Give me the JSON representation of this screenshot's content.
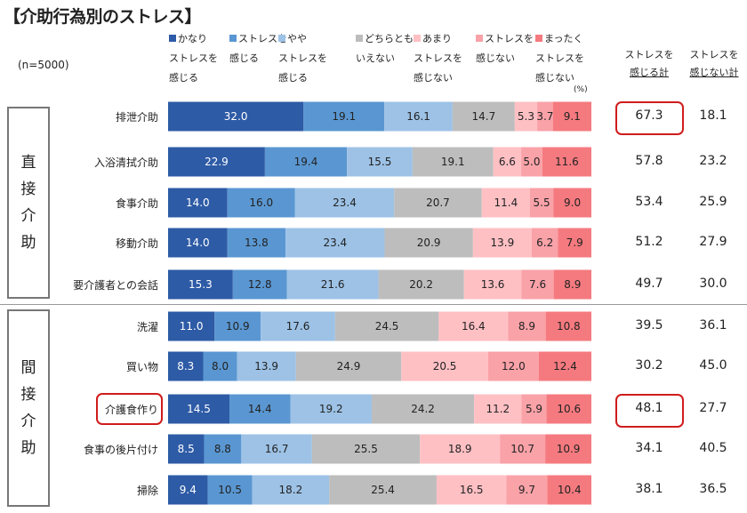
{
  "title": "【介助行為別のストレス】",
  "sample": "(n=5000)",
  "unit": "(%)",
  "colors": [
    "#2E5BA6",
    "#5A97D2",
    "#9DC2E6",
    "#BDBDBD",
    "#FFC0C4",
    "#F9A2A8",
    "#F57A7F"
  ],
  "legend": [
    {
      "line1": "かなり",
      "line2": "ストレスを",
      "line3": "感じる"
    },
    {
      "line1": "ストレスを",
      "line2": "感じる",
      "line3": ""
    },
    {
      "line1": "やや",
      "line2": "ストレスを",
      "line3": "感じる"
    },
    {
      "line1": "どちらとも",
      "line2": "いえない",
      "line3": ""
    },
    {
      "line1": "あまり",
      "line2": "ストレスを",
      "line3": "感じない"
    },
    {
      "line1": "ストレスを",
      "line2": "感じない",
      "line3": ""
    },
    {
      "line1": "まったく",
      "line2": "ストレスを",
      "line3": "感じない"
    }
  ],
  "total_headers": [
    {
      "line1": "ストレスを",
      "line2": "感じる計"
    },
    {
      "line1": "ストレスを",
      "line2": "感じない計"
    }
  ],
  "groups": [
    {
      "chars": [
        "直",
        "接",
        "介",
        "助"
      ]
    },
    {
      "chars": [
        "間",
        "接",
        "介",
        "助"
      ]
    }
  ],
  "chart_data": {
    "type": "bar",
    "orientation": "horizontal-stacked-100",
    "title": "【介助行為別のストレス】",
    "xlim": [
      0,
      100
    ],
    "legend_placement": "top",
    "series_names": [
      "かなりストレスを感じる",
      "ストレスを感じる",
      "ややストレスを感じる",
      "どちらともいえない",
      "あまりストレスを感じない",
      "ストレスを感じない",
      "まったくストレスを感じない"
    ],
    "rows": [
      {
        "label": "排泄介助",
        "values": [
          32.0,
          19.1,
          16.1,
          14.7,
          5.3,
          3.7,
          9.1
        ],
        "stress_total": "67.3",
        "no_stress_total": "18.1",
        "highlight_total": true
      },
      {
        "label": "入浴清拭介助",
        "values": [
          22.9,
          19.4,
          15.5,
          19.1,
          6.6,
          5.0,
          11.6
        ],
        "stress_total": "57.8",
        "no_stress_total": "23.2"
      },
      {
        "label": "食事介助",
        "values": [
          14.0,
          16.0,
          23.4,
          20.7,
          11.4,
          5.5,
          9.0
        ],
        "stress_total": "53.4",
        "no_stress_total": "25.9"
      },
      {
        "label": "移動介助",
        "values": [
          14.0,
          13.8,
          23.4,
          20.9,
          13.9,
          6.2,
          7.9
        ],
        "stress_total": "51.2",
        "no_stress_total": "27.9"
      },
      {
        "label": "要介護者との会話",
        "values": [
          15.3,
          12.8,
          21.6,
          20.2,
          13.6,
          7.6,
          8.9
        ],
        "stress_total": "49.7",
        "no_stress_total": "30.0"
      },
      {
        "label": "洗濯",
        "values": [
          11.0,
          10.9,
          17.6,
          24.5,
          16.4,
          8.9,
          10.8
        ],
        "stress_total": "39.5",
        "no_stress_total": "36.1"
      },
      {
        "label": "買い物",
        "values": [
          8.3,
          8.0,
          13.9,
          24.9,
          20.5,
          12.0,
          12.4
        ],
        "stress_total": "30.2",
        "no_stress_total": "45.0"
      },
      {
        "label": "介護食作り",
        "values": [
          14.5,
          14.4,
          19.2,
          24.2,
          11.2,
          5.9,
          10.6
        ],
        "stress_total": "48.1",
        "no_stress_total": "27.7",
        "highlight_label": true,
        "highlight_total": true
      },
      {
        "label": "食事の後片付け",
        "values": [
          8.5,
          8.8,
          16.7,
          25.5,
          18.9,
          10.7,
          10.9
        ],
        "stress_total": "34.1",
        "no_stress_total": "40.5"
      },
      {
        "label": "掃除",
        "values": [
          9.4,
          10.5,
          18.2,
          25.4,
          16.5,
          9.7,
          10.4
        ],
        "stress_total": "38.1",
        "no_stress_total": "36.5"
      }
    ]
  }
}
